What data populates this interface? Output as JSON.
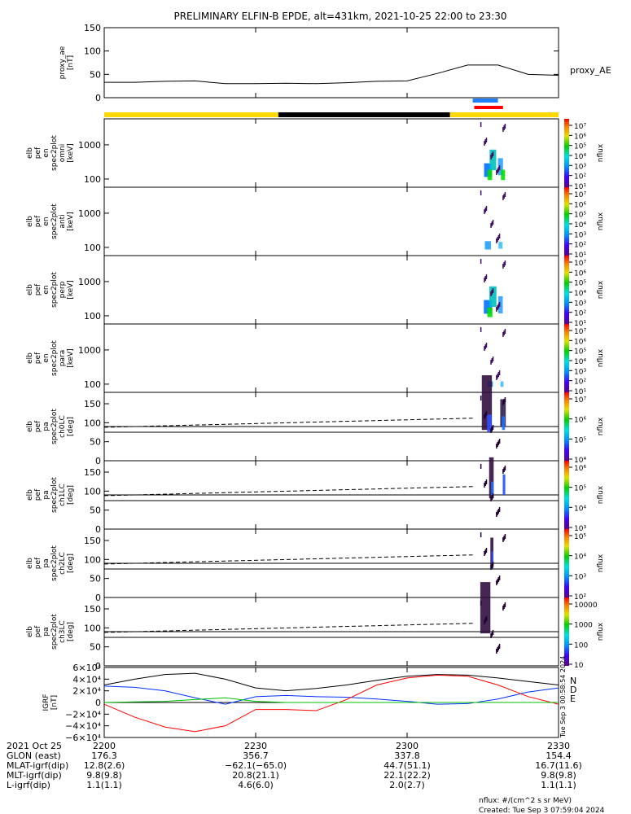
{
  "title": "PRELIMINARY ELFIN-B EPDE, alt=431km, 2021-10-25 22:00 to 23:30",
  "created": "Created: Tue Sep  3 07:59:04 2024",
  "units_note": "nflux: #/(cm^2 s sr MeV)",
  "side_stamp": "Tue Sep  3 00:58:54 2024",
  "colors": {
    "yellow": "#ffd700",
    "black": "#000000",
    "blue": "#1e7fff",
    "red": "#ff0000",
    "green": "#00c000"
  },
  "chart_data": [
    {
      "type": "line",
      "panel": "proxy_ae",
      "ylabel": "proxy_ae [nT]",
      "legend": "proxy_AE",
      "ylim": [
        0,
        150
      ],
      "yticks": [
        "150",
        "100",
        "50",
        "0"
      ],
      "x": [
        0,
        6,
        12,
        18,
        24,
        30,
        36,
        42,
        48,
        54,
        60,
        66,
        72,
        78,
        84,
        90
      ],
      "values": [
        33,
        33,
        35,
        36,
        30,
        30,
        31,
        30,
        32,
        35,
        36,
        52,
        70,
        70,
        50,
        48
      ]
    },
    {
      "type": "bar",
      "panel": "state_bar",
      "segments": [
        {
          "color": "yellow",
          "from": 0,
          "to": 34.5
        },
        {
          "color": "black",
          "from": 34.5,
          "to": 68.5
        },
        {
          "color": "yellow",
          "from": 68.5,
          "to": 90
        }
      ],
      "markers": [
        {
          "color": "blue",
          "from": 73,
          "to": 78
        },
        {
          "color": "red",
          "from": 73.3,
          "to": 79
        }
      ]
    },
    {
      "type": "heatmap",
      "panel": "elb pef en spec2plot omni [keV]",
      "yticks": [
        "1000",
        "100"
      ],
      "colorbar": [
        "10⁷",
        "10⁶",
        "10⁵",
        "10⁴",
        "10³",
        "10²",
        "10¹"
      ],
      "zlabel": "nflux",
      "lines": []
    },
    {
      "type": "heatmap",
      "panel": "elb pef en spec2plot anti [keV]",
      "yticks": [
        "1000",
        "100"
      ],
      "colorbar": [
        "10⁷",
        "10⁶",
        "10⁵",
        "10⁴",
        "10³",
        "10²",
        "10¹"
      ],
      "zlabel": "nflux",
      "lines": []
    },
    {
      "type": "heatmap",
      "panel": "elb pef en spec2plot perp [keV]",
      "yticks": [
        "1000",
        "100"
      ],
      "colorbar": [
        "10⁷",
        "10⁶",
        "10⁵",
        "10⁴",
        "10³",
        "10²",
        "10¹"
      ],
      "zlabel": "nflux",
      "lines": []
    },
    {
      "type": "heatmap",
      "panel": "elb pef en spec2plot para [keV]",
      "yticks": [
        "1000",
        "100"
      ],
      "colorbar": [
        "10⁷",
        "10⁶",
        "10⁵",
        "10⁴",
        "10³",
        "10²",
        "10¹"
      ],
      "zlabel": "nflux",
      "lines": []
    },
    {
      "type": "heatmap",
      "panel": "elb pef pa spec2plot ch0LC [deg]",
      "yticks": [
        "150",
        "100",
        "50",
        "0"
      ],
      "colorbar": [
        "10⁷",
        "10⁶",
        "10⁵",
        "10⁴"
      ],
      "zlabel": "nflux",
      "lines": [
        90,
        75
      ]
    },
    {
      "type": "heatmap",
      "panel": "elb pef pa spec2plot ch1LC [deg]",
      "yticks": [
        "150",
        "100",
        "50",
        "0"
      ],
      "colorbar": [
        "10⁶",
        "10⁵",
        "10⁴",
        "10³"
      ],
      "zlabel": "nflux",
      "lines": [
        90,
        75
      ]
    },
    {
      "type": "heatmap",
      "panel": "elb pef pa spec2plot ch2LC [deg]",
      "yticks": [
        "150",
        "100",
        "50",
        "0"
      ],
      "colorbar": [
        "10⁵",
        "10⁴",
        "10³",
        "10²"
      ],
      "zlabel": "nflux",
      "lines": [
        90,
        75
      ]
    },
    {
      "type": "heatmap",
      "panel": "elb pef pa spec2plot ch3LC [deg]",
      "yticks": [
        "150",
        "100",
        "50",
        "0"
      ],
      "colorbar": [
        "10000",
        "1000",
        "100",
        "10"
      ],
      "zlabel": "nflux",
      "lines": [
        90,
        75
      ]
    },
    {
      "type": "line",
      "panel": "igrf",
      "ylabel": "IGRF [nT]",
      "ylim": [
        -60000,
        60000
      ],
      "yticks": [
        "6×10⁴",
        "4×10⁴",
        "2×10⁴",
        "0",
        "−2×10⁴",
        "−4×10⁴",
        "−6×10⁴"
      ],
      "legend": [
        "N",
        "D",
        "E"
      ],
      "x": [
        0,
        6,
        12,
        18,
        24,
        30,
        36,
        42,
        48,
        54,
        60,
        66,
        72,
        78,
        84,
        90
      ],
      "series": [
        {
          "name": "N",
          "color": "black",
          "values": [
            30000,
            40000,
            48000,
            50000,
            40000,
            25000,
            20000,
            24000,
            30000,
            38000,
            45000,
            48000,
            47000,
            42000,
            36000,
            30000
          ]
        },
        {
          "name": "D",
          "color": "blue",
          "values": [
            28000,
            26000,
            20000,
            8000,
            -3000,
            10000,
            12000,
            10000,
            9000,
            6000,
            2000,
            -3000,
            -2000,
            6000,
            18000,
            25000
          ]
        },
        {
          "name": "E",
          "color": "red",
          "values": [
            -3000,
            -25000,
            -42000,
            -50000,
            -40000,
            -12000,
            -12000,
            -14000,
            5000,
            30000,
            42000,
            47000,
            45000,
            30000,
            10000,
            -3000
          ]
        },
        {
          "name": "green",
          "color": "green",
          "values": [
            0,
            1000,
            2000,
            5000,
            8000,
            2000,
            0,
            0,
            0,
            0,
            0,
            0,
            0,
            0,
            0,
            0
          ]
        }
      ]
    }
  ],
  "x_axis": {
    "ticks": [
      "2200",
      "2230",
      "2300",
      "2330"
    ],
    "rows": [
      {
        "label": "2021 Oct 25",
        "values": [
          "2200",
          "2230",
          "2300",
          "2330"
        ]
      },
      {
        "label": "GLON (east)",
        "values": [
          "176.3",
          "356.7",
          "337.8",
          "154.4"
        ]
      },
      {
        "label": "MLAT-igrf(dip)",
        "values": [
          "12.8(2.6)",
          "−62.1(−65.0)",
          "44.7(51.1)",
          "16.7(11.6)"
        ]
      },
      {
        "label": "MLT-igrf(dip)",
        "values": [
          "9.8(9.8)",
          "20.8(21.1)",
          "22.1(22.2)",
          "9.8(9.8)"
        ]
      },
      {
        "label": "L-igrf(dip)",
        "values": [
          "1.1(1.1)",
          "4.6(6.0)",
          "2.0(2.7)",
          "1.1(1.1)"
        ]
      }
    ]
  }
}
